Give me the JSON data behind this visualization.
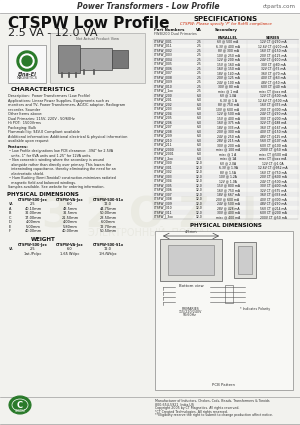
{
  "bg_color": "#f5f5f0",
  "title_bar_text": "Power Transformers - Low Profile",
  "title_bar_right": "ctparts.com",
  "main_title": "CTSPW Low Profile",
  "subtitle": "2.5 VA - 12.0 VA",
  "spec_title": "SPECIFICATIONS",
  "spec_subtitle": "CTSPW: Please specify 'P' for RoHS compliance",
  "char_title": "CHARACTERISTICS",
  "char_lines": [
    "Description:  Power Transformers (Low Profile)",
    "Applications: Linear Power Supplies, Equipments such as",
    "monitors and TV, Power Transformers, AC/DC adaptor, Radiogram",
    "recorder, Sounder",
    "Other Items above:",
    "Dual Primaries: 115V, 220V , 50/60Hz",
    "Hi POT:  1500Vrms",
    "Packaging: Bulk",
    "Flammability: 94V-0 Compliant available",
    "Additional information: Additional electrical & physical information",
    "available upon request"
  ],
  "features_title": "Features:",
  "feature1_line1": "Low Profile designations low PCB clearance: .394\" for 2.5VA",
  "feature1_line2": "units, 1\" for 6VA units and 1.25\" for 12VA units.",
  "feature2_line1": "Non concentric winding where the secondary is wound",
  "feature2_line2": "alongside rather than directly over primary. This lowers the",
  "feature2_line3": "interwinding capacitance, thereby eliminating the need for an",
  "feature2_line4": "electrostatic shield.",
  "feature3_line1": "Hum Bucking (Semi-Toroidal) construction-minimizes radiated",
  "feature3_line2": "magnetic field and balanced windings.",
  "samples_line": "Samples available. See website for ordering information.",
  "phys_dim_title": "PHYSICAL DIMENSIONS",
  "phys_table_headers": [
    "",
    "CTSPW-500-Jxx",
    "CTSPW-VA-Jxx",
    "CTSPW-500-S1x"
  ],
  "phys_table_rows": [
    [
      "VA",
      "2.5",
      "6.0",
      "12.0"
    ],
    [
      "A",
      "40.10mm",
      "48.5mm",
      "44.75mm"
    ],
    [
      "B",
      "32.00mm",
      "32.5mm",
      "50.00mm"
    ],
    [
      "C",
      "17.00mm",
      "21.50mm",
      "28.50mm"
    ],
    [
      "D",
      "4.00mm",
      "4.00mm",
      "6.00mm"
    ],
    [
      "E",
      "5.00mm",
      "5.80mm",
      "12.70mm"
    ],
    [
      "F",
      "40.00mm",
      "40.00mm",
      "50.50mm"
    ]
  ],
  "weight_title": "WEIGHT",
  "weight_table_headers": [
    "",
    "CTSPW-500-Jxx",
    "CTSPW-VA-Jxx",
    "CTSPW-500-S1x"
  ],
  "weight_table_rows": [
    [
      "VA",
      "2.5",
      "6.0",
      "12.0"
    ],
    [
      "",
      "1wt./Pc/pc",
      "1.65 Wt/pc",
      "1.H./Wt/pc"
    ]
  ],
  "footer_line1": "Manufacturer of Inductors, Chokes, Coils, Beads, Transformers & Toroids",
  "footer_line2": "800-654-5921  India-US",
  "footer_line3": "Copyright 2005 by CT Magnetics. All rights reserved.",
  "footer_line4": "*CT Created Technologies. All rights reserved.",
  "footer_line5": "**Eligibility reserve the right to submit to change production affect notice.",
  "accent_red": "#cc2200",
  "table_rows": [
    [
      "CTSPW_J001",
      "2.5",
      "6V @ 500 mA",
      "12V CT @250 mA"
    ],
    [
      "CTSPW_J011",
      "2.5",
      "6.3V @ 400 mA",
      "12.6V CT @200 mA"
    ],
    [
      "CTSPW_J002",
      "2.5",
      "8V @ 300 mA",
      "16V CT @150 mA"
    ],
    [
      "CTSPW_J003",
      "2.5",
      "10V @ 250 mA",
      "20V CT @125 mA"
    ],
    [
      "CTSPW_J004",
      "2.5",
      "12V @ 200 mA",
      "24V CT @100 mA"
    ],
    [
      "CTSPW_J005",
      "2.5",
      "15V @ 160 mA",
      "30V CT @80 mA"
    ],
    [
      "CTSPW_J006",
      "2.5",
      "16V @ 150 mA",
      "32V CT @75 mA"
    ],
    [
      "CTSPW_J007",
      "2.5",
      "18V @ 140 mA",
      "36V CT @70 mA"
    ],
    [
      "CTSPW_J008",
      "2.5",
      "20V @ 125 mA",
      "40V CT @63 mA"
    ],
    [
      "CTSPW_J009",
      "2.5",
      "24V @ 100 mA",
      "48V CT @50 mA"
    ],
    [
      "CTSPW_J010",
      "2.5",
      "30V @ 80 mA",
      "60V CT @40 mA"
    ],
    [
      "CTSPW_J_1xx",
      "2.5",
      "misc @ 1 mA",
      "misc CT @xxx mA"
    ],
    [
      "CTSPW_J200",
      "6.0",
      "6V @ 1.0A",
      "12V CT @500 mA"
    ],
    [
      "CTSPW_J201",
      "6.0",
      "6.3V @ 1 A",
      "12.6V CT @500 mA"
    ],
    [
      "CTSPW_J202",
      "6.0",
      "8V @ 750 mA",
      "16V CT @375 mA"
    ],
    [
      "CTSPW_J203",
      "6.0",
      "10V @ 600 mA",
      "20V CT @300 mA"
    ],
    [
      "CTSPW_J204",
      "6.0",
      "12V @ 500 mA",
      "24V CT @250 mA"
    ],
    [
      "CTSPW_J205",
      "6.0",
      "15V @ 400 mA",
      "30V CT @200 mA"
    ],
    [
      "CTSPW_J206",
      "6.0",
      "16V @ 375 mA",
      "32V CT @188 mA"
    ],
    [
      "CTSPW_J207",
      "6.0",
      "18V @ 333 mA",
      "36V CT @167 mA"
    ],
    [
      "CTSPW_J208",
      "6.0",
      "20V @ 300 mA",
      "40V CT @150 mA"
    ],
    [
      "CTSPW_J209",
      "6.0",
      "24V @ 250 mA",
      "48V CT @125 mA"
    ],
    [
      "CTSPW_J210",
      "6.0",
      "28V @ 215 mA",
      "56V CT @107 mA"
    ],
    [
      "CTSPW_J211",
      "6.0",
      "30V @ 200 mA",
      "60V CT @100 mA"
    ],
    [
      "CTSPW_J2000",
      "6.0",
      "misc @ 100 mA",
      "200V CT @50 mA"
    ],
    [
      "CTSPW_J2001",
      "6.0",
      "misc @ 1 A",
      "misc CT @500 mA"
    ],
    [
      "CTSPW_J_2xx",
      "6.0",
      "misc @ 1A",
      "misc CT @xxx mA"
    ],
    [
      "CTSPW_J300",
      "12.0",
      "6V @ 2.0A",
      "12V CT @1.0A"
    ],
    [
      "CTSPW_J301",
      "12.0",
      "6.3V @ 1.9A",
      "12.6V CT @952 mA"
    ],
    [
      "CTSPW_J302",
      "12.0",
      "8V @ 1.5A",
      "16V CT @750 mA"
    ],
    [
      "CTSPW_J303",
      "12.0",
      "10V @ 1.2A",
      "20V CT @600 mA"
    ],
    [
      "CTSPW_J304",
      "12.0",
      "12V @ 1.0A",
      "24V CT @500 mA"
    ],
    [
      "CTSPW_J305",
      "12.0",
      "15V @ 800 mA",
      "30V CT @400 mA"
    ],
    [
      "CTSPW_J306",
      "12.0",
      "16V @ 750 mA",
      "32V CT @375 mA"
    ],
    [
      "CTSPW_J307",
      "12.0",
      "18V @ 667 mA",
      "36V CT @333 mA"
    ],
    [
      "CTSPW_J308",
      "12.0",
      "20V @ 600 mA",
      "40V CT @300 mA"
    ],
    [
      "CTSPW_J309",
      "12.0",
      "24V @ 500 mA",
      "48V CT @250 mA"
    ],
    [
      "CTSPW_J310",
      "12.0",
      "28V @ 428 mA",
      "56V CT @214 mA"
    ],
    [
      "CTSPW_J311",
      "12.0",
      "30V @ 400 mA",
      "60V CT @200 mA"
    ],
    [
      "CTSPW_J_3xx",
      "12.0",
      "misc @ 400 mA",
      "200V CT @50 mA"
    ]
  ]
}
